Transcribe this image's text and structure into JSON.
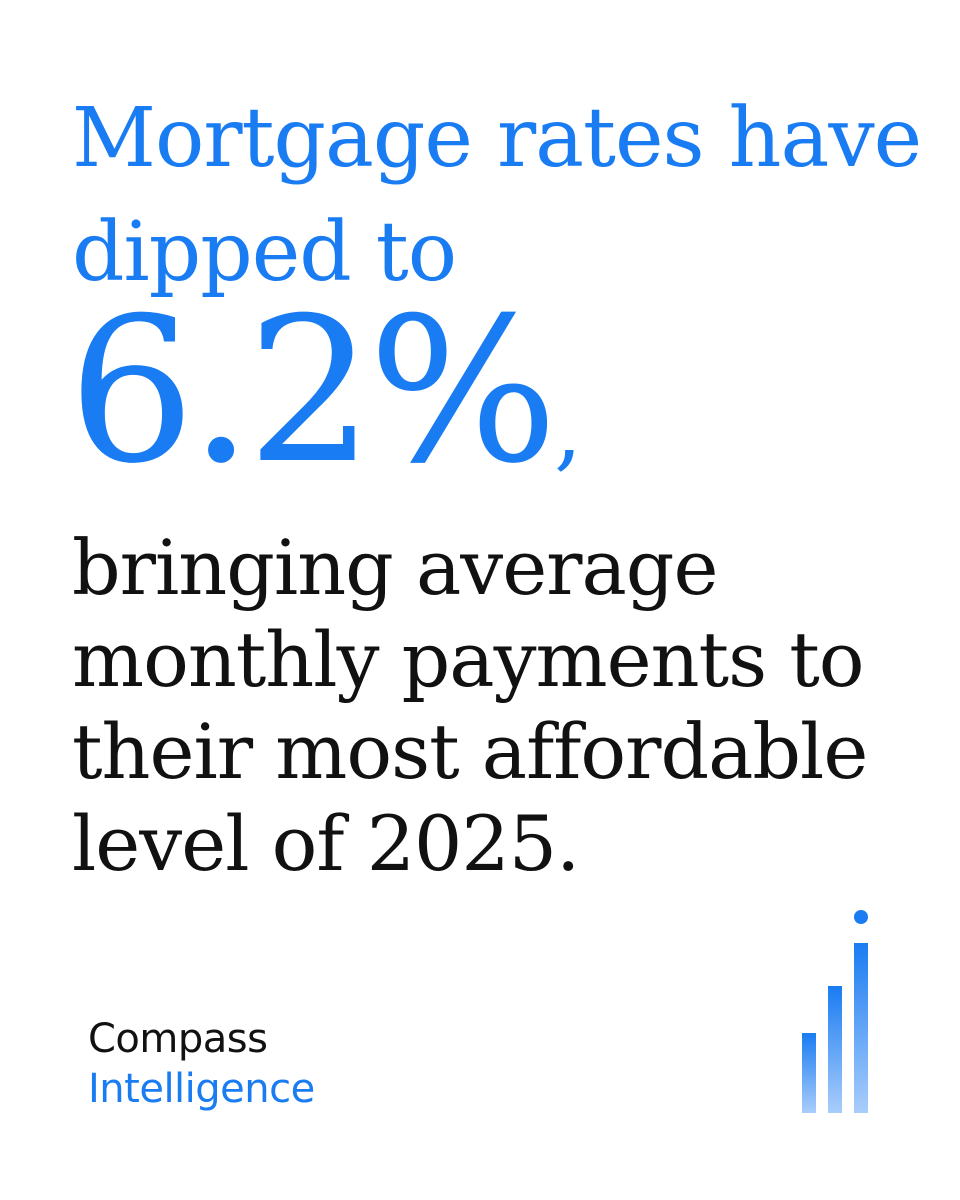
{
  "headline": {
    "line1": "Mortgage rates have",
    "line2": "dipped to"
  },
  "stat": {
    "value": "6.2%",
    "trailing": ","
  },
  "body": {
    "line1": "bringing average",
    "line2": "monthly payments to",
    "line3": "their most affordable",
    "line4": "level of 2025."
  },
  "brand": {
    "line1": "Compass",
    "line2": "Intelligence",
    "icon": "rising-bars-logo-icon"
  },
  "colors": {
    "accent": "#1a7cf2",
    "text": "#111111",
    "background": "#ffffff"
  }
}
